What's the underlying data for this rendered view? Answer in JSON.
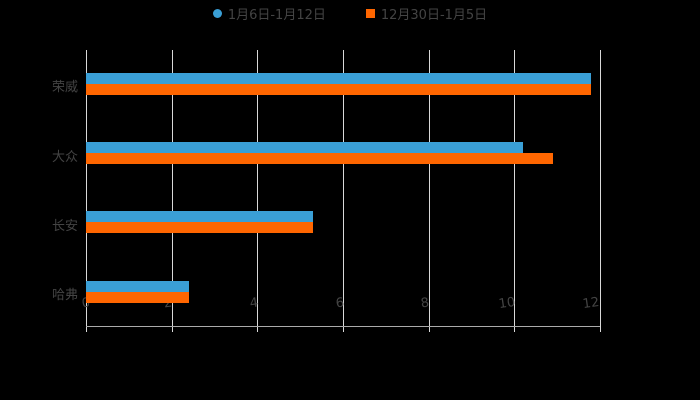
{
  "chart_data": {
    "type": "bar",
    "orientation": "horizontal",
    "title": "",
    "xlabel": "",
    "ylabel": "",
    "categories": [
      "荣威",
      "大众",
      "长安",
      "哈弗"
    ],
    "series": [
      {
        "name": "1月6日-1月12日",
        "color": "#3a9fd6",
        "values": [
          11.8,
          10.2,
          5.3,
          2.4
        ]
      },
      {
        "name": "12月30日-1月5日",
        "color": "#ff6600",
        "values": [
          11.8,
          10.9,
          5.3,
          2.4
        ]
      }
    ],
    "xlim": [
      0,
      12
    ],
    "xticks": [
      "0",
      "2",
      "4",
      "6",
      "8",
      "10",
      "12"
    ],
    "grid": true,
    "legend_position": "top"
  },
  "legend": {
    "series1": "1月6日-1月12日",
    "series2": "12月30日-1月5日"
  },
  "colors": {
    "series1": "#3a9fd6",
    "series2": "#ff6600",
    "background": "#000000"
  }
}
